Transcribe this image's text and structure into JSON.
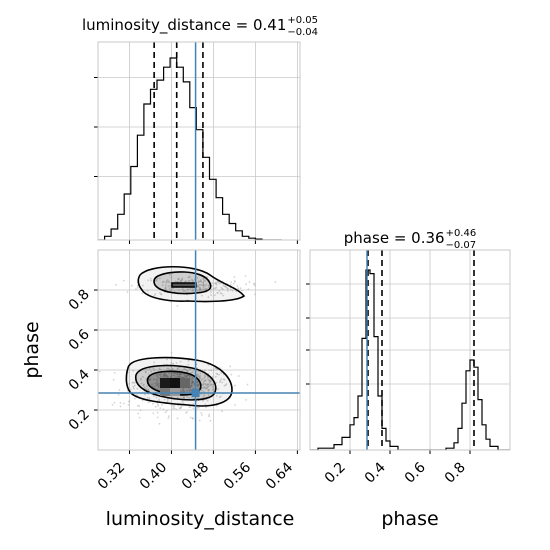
{
  "chart_data": {
    "type": "corner",
    "parameters": [
      "luminosity_distance",
      "phase"
    ],
    "injected_values": {
      "luminosity_distance": 0.446,
      "phase": 0.285
    },
    "titles": [
      {
        "param": "luminosity_distance",
        "main": "luminosity_distance = 0.41",
        "sup": "+0.05",
        "sub": "−0.04"
      },
      {
        "param": "phase",
        "main": "phase = 0.36",
        "sup": "+0.46",
        "sub": "−0.07"
      }
    ],
    "axis_labels": {
      "x_left": "luminosity_distance",
      "x_right": "phase",
      "y": "phase"
    },
    "ticks": {
      "luminosity_distance": [
        "0.32",
        "0.40",
        "0.48",
        "0.56",
        "0.64"
      ],
      "phase_x": [
        "0.2",
        "0.4",
        "0.6",
        "0.8"
      ],
      "phase_y": [
        "0.2",
        "0.4",
        "0.6",
        "0.8"
      ]
    },
    "xlim": {
      "luminosity_distance": [
        0.26,
        0.645
      ],
      "phase": [
        0.0,
        1.0
      ]
    },
    "ylim_phase": [
      0.0,
      1.0
    ],
    "quantile_lines": {
      "luminosity_distance": [
        0.367,
        0.41,
        0.46
      ],
      "phase": [
        0.29,
        0.36,
        0.82
      ]
    },
    "hist_luminosity_distance": {
      "edges": [
        0.26,
        0.2725,
        0.285,
        0.2975,
        0.31,
        0.3225,
        0.335,
        0.3475,
        0.36,
        0.3725,
        0.385,
        0.3975,
        0.41,
        0.4225,
        0.435,
        0.4475,
        0.46,
        0.4725,
        0.485,
        0.4975,
        0.51,
        0.5225,
        0.535,
        0.5475,
        0.56,
        0.5725,
        0.585,
        0.5975,
        0.61
      ],
      "counts": [
        0,
        2,
        6,
        14,
        25,
        40,
        57,
        74,
        82,
        87,
        94,
        99,
        94,
        86,
        72,
        60,
        45,
        33,
        23,
        14,
        9,
        5,
        2,
        1,
        0.5,
        0,
        0,
        0
      ]
    },
    "hist_phase": {
      "edges": [
        0.0,
        0.04,
        0.08,
        0.12,
        0.16,
        0.2,
        0.22,
        0.24,
        0.26,
        0.28,
        0.3,
        0.32,
        0.34,
        0.36,
        0.38,
        0.4,
        0.44,
        0.48,
        0.52,
        0.56,
        0.6,
        0.64,
        0.68,
        0.72,
        0.74,
        0.76,
        0.78,
        0.8,
        0.82,
        0.84,
        0.86,
        0.88,
        0.9,
        0.94,
        1.0
      ],
      "counts": [
        0,
        1,
        1,
        3,
        7,
        14,
        18,
        30,
        62,
        100,
        98,
        63,
        30,
        12,
        5,
        2,
        0,
        0,
        0,
        0,
        0,
        0,
        1,
        4,
        12,
        26,
        44,
        50,
        46,
        28,
        14,
        6,
        2,
        0
      ]
    }
  }
}
